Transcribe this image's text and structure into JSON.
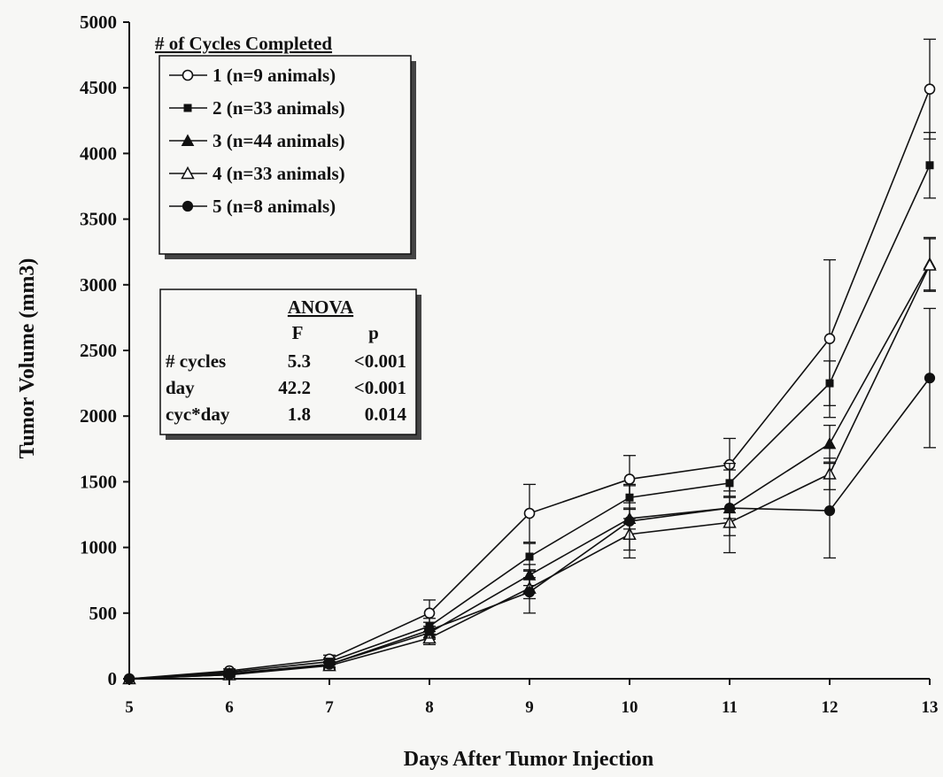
{
  "chart_data": {
    "type": "line",
    "title": "",
    "xlabel": "Days After Tumor Injection",
    "ylabel": "Tumor Volume (mm3)",
    "x": [
      5,
      6,
      7,
      8,
      9,
      10,
      11,
      12,
      13
    ],
    "xlim": [
      5,
      13
    ],
    "ylim": [
      0,
      5000
    ],
    "yticks": [
      0,
      500,
      1000,
      1500,
      2000,
      2500,
      3000,
      3500,
      4000,
      4500,
      5000
    ],
    "grid": false,
    "legend": {
      "title": "# of Cycles Completed",
      "placement": "top-left"
    },
    "series": [
      {
        "name": "1 (n=9 animals)",
        "marker": "open-circle",
        "values": [
          0,
          60,
          150,
          500,
          1260,
          1520,
          1630,
          2590,
          4490
        ],
        "errors": [
          0,
          15,
          30,
          100,
          220,
          180,
          200,
          600,
          380
        ]
      },
      {
        "name": "2 (n=33 animals)",
        "marker": "filled-square",
        "values": [
          0,
          50,
          130,
          400,
          930,
          1380,
          1490,
          2250,
          3910
        ],
        "errors": [
          0,
          10,
          25,
          60,
          100,
          90,
          100,
          170,
          250
        ]
      },
      {
        "name": "3 (n=44 animals)",
        "marker": "filled-triangle",
        "values": [
          0,
          40,
          110,
          350,
          790,
          1220,
          1300,
          1790,
          3160
        ],
        "errors": [
          0,
          10,
          20,
          50,
          80,
          80,
          80,
          140,
          200
        ]
      },
      {
        "name": "4 (n=33 animals)",
        "marker": "open-triangle",
        "values": [
          0,
          30,
          100,
          310,
          690,
          1100,
          1190,
          1560,
          3150
        ],
        "errors": [
          0,
          10,
          20,
          50,
          80,
          120,
          100,
          120,
          200
        ]
      },
      {
        "name": "5 (n=8 animals)",
        "marker": "filled-circle",
        "values": [
          0,
          30,
          110,
          370,
          660,
          1200,
          1300,
          1280,
          2290
        ],
        "errors": [
          0,
          10,
          20,
          60,
          160,
          280,
          340,
          360,
          530
        ]
      }
    ],
    "anova": {
      "title": "ANOVA",
      "columns": [
        "",
        "F",
        "p"
      ],
      "rows": [
        [
          "# cycles",
          "5.3",
          "<0.001"
        ],
        [
          "day",
          "42.2",
          "<0.001"
        ],
        [
          "cyc*day",
          "1.8",
          "0.014"
        ]
      ]
    }
  }
}
